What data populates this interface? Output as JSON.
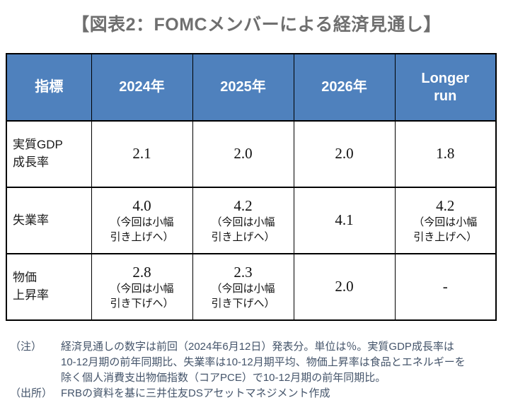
{
  "title": "【図表2：FOMCメンバーによる経済見通し】",
  "colors": {
    "header_bg": "#4f81bd",
    "header_text": "#ffffff",
    "title_text": "#6f6f6f",
    "table_border": "#000000",
    "notes_text": "#44546a"
  },
  "table": {
    "columns": [
      "指標",
      "2024年",
      "2025年",
      "2026年",
      "Longer\nrun"
    ],
    "rows": [
      {
        "label": "実質GDP\n成長率",
        "cells": [
          {
            "num": "2.1",
            "note": ""
          },
          {
            "num": "2.0",
            "note": ""
          },
          {
            "num": "2.0",
            "note": ""
          },
          {
            "num": "1.8",
            "note": ""
          }
        ]
      },
      {
        "label": "失業率",
        "cells": [
          {
            "num": "4.0",
            "note": "（今回は小幅\n引き上げへ）"
          },
          {
            "num": "4.2",
            "note": "（今回は小幅\n引き上げへ）"
          },
          {
            "num": "4.1",
            "note": ""
          },
          {
            "num": "4.2",
            "note": "（今回は小幅\n引き上げへ）"
          }
        ]
      },
      {
        "label": "物価\n上昇率",
        "cells": [
          {
            "num": "2.8",
            "note": "（今回は小幅\n引き下げへ）"
          },
          {
            "num": "2.3",
            "note": "（今回は小幅\n引き下げへ）"
          },
          {
            "num": "2.0",
            "note": ""
          },
          {
            "num": "-",
            "note": ""
          }
        ]
      }
    ]
  },
  "notes": {
    "note_label": "（注）",
    "note_text": "経済見通しの数字は前回（2024年6月12日）発表分。単位は％。実質GDP成長率は\n10-12月期の前年同期比、失業率は10-12月期平均、物価上昇率は食品とエネルギーを\n除く個人消費支出物価指数（コアPCE）で10-12月期の前年同期比。",
    "source_label": "（出所）",
    "source_text": "FRBの資料を基に三井住友DSアセットマネジメント作成"
  },
  "chart_data": {
    "type": "table",
    "title": "図表2：FOMCメンバーによる経済見通し",
    "columns": [
      "指標",
      "2024年",
      "2025年",
      "2026年",
      "Longer run"
    ],
    "series": [
      {
        "name": "実質GDP成長率",
        "values": [
          2.1,
          2.0,
          2.0,
          1.8
        ],
        "revision_notes": [
          "",
          "",
          "",
          ""
        ]
      },
      {
        "name": "失業率",
        "values": [
          4.0,
          4.2,
          4.1,
          4.2
        ],
        "revision_notes": [
          "今回は小幅引き上げへ",
          "今回は小幅引き上げへ",
          "",
          "今回は小幅引き上げへ"
        ]
      },
      {
        "name": "物価上昇率",
        "values": [
          2.8,
          2.3,
          2.0,
          null
        ],
        "revision_notes": [
          "今回は小幅引き下げへ",
          "今回は小幅引き下げへ",
          "",
          ""
        ]
      }
    ],
    "unit": "%",
    "source": "FRBの資料を基に三井住友DSアセットマネジメント作成"
  }
}
